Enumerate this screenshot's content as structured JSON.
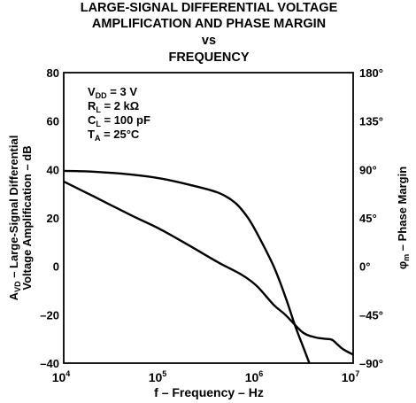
{
  "chart_data": {
    "type": "line",
    "title_lines": [
      "LARGE-SIGNAL DIFFERENTIAL VOLTAGE",
      "AMPLIFICATION AND PHASE MARGIN",
      "vs",
      "FREQUENCY"
    ],
    "xlabel": "f – Frequency – Hz",
    "ylabel_left_lines": [
      "Large-Signal Differential",
      "Voltage Amplification – dB"
    ],
    "ylabel_left_prefix": "A",
    "ylabel_left_sub": "VD",
    "ylabel_right_prefix": "φ",
    "ylabel_right_sub": "m",
    "ylabel_right_suffix": " – Phase Margin",
    "x_scale": "log",
    "xlim": [
      10000,
      10000000
    ],
    "x_ticks": [
      {
        "base": "10",
        "exp": "4"
      },
      {
        "base": "10",
        "exp": "5"
      },
      {
        "base": "10",
        "exp": "6"
      },
      {
        "base": "10",
        "exp": "7"
      }
    ],
    "ylim_left": [
      -40,
      80
    ],
    "y_ticks_left": [
      "80",
      "60",
      "40",
      "20",
      "0",
      "–20",
      "–40"
    ],
    "ylim_right": [
      -90,
      180
    ],
    "y_ticks_right": [
      "180°",
      "135°",
      "90°",
      "45°",
      "0°",
      "–45°",
      "–90°"
    ],
    "grid": true,
    "conditions": [
      {
        "main": "V",
        "sub": "DD",
        "rest": " = 3 V"
      },
      {
        "main": "R",
        "sub": "L",
        "rest": " = 2 kΩ"
      },
      {
        "main": "C",
        "sub": "L",
        "rest": " = 100 pF"
      },
      {
        "main": "T",
        "sub": "A",
        "rest": " = 25°C"
      }
    ],
    "series": [
      {
        "axis": "left",
        "x": [
          10000,
          20000,
          50000,
          100000,
          200000,
          400000,
          600000,
          800000,
          1000000,
          1500000,
          2000000,
          2500000,
          3000000,
          3500000
        ],
        "y": [
          39.4,
          39.1,
          37.9,
          36.3,
          33.7,
          30.4,
          26.2,
          20.4,
          13.9,
          0,
          -13,
          -24.5,
          -32.8,
          -39.8
        ]
      },
      {
        "axis": "right",
        "x": [
          10000,
          20000,
          50000,
          100000,
          200000,
          400000,
          700000,
          1000000,
          1500000,
          2000000,
          3000000,
          4000000,
          5000000,
          6000000,
          7000000,
          8000000,
          10000000
        ],
        "y": [
          78.8,
          65.4,
          47.4,
          34.5,
          19.3,
          3.6,
          -7.9,
          -18.2,
          -35.8,
          -45.4,
          -61.4,
          -65.9,
          -67.3,
          -68.2,
          -73.3,
          -77.5,
          -82.1
        ]
      }
    ]
  }
}
